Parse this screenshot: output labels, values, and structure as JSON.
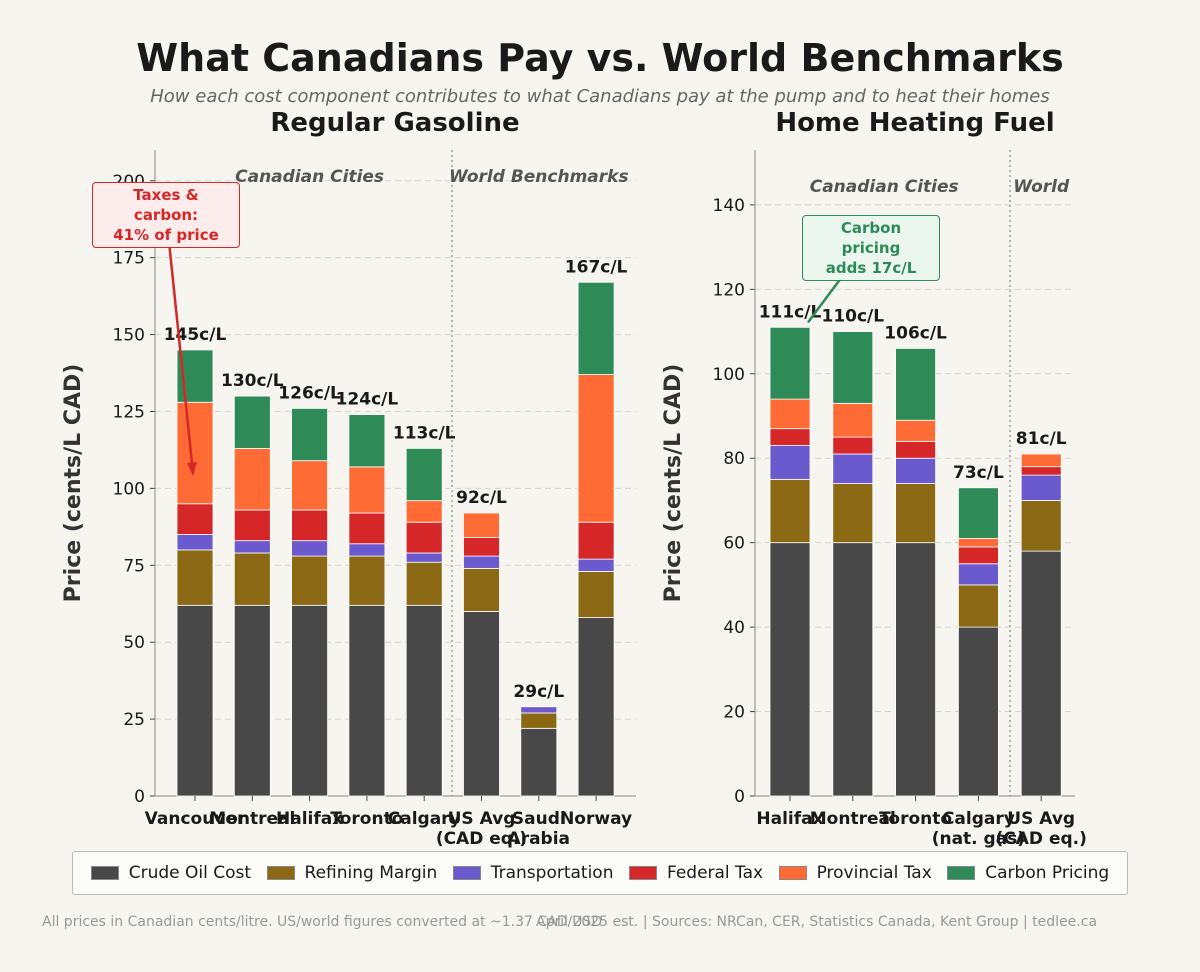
{
  "title": "What Canadians Pay vs. World Benchmarks",
  "subtitle": "How each cost component contributes to what Canadians pay at the pump and to heat their homes",
  "footer_left": "All prices in Canadian cents/litre. US/world figures converted at ~1.37 CAD/USD",
  "footer_right": "April 2025 est.  |  Sources: NRCan, CER, Statistics Canada, Kent Group  |  tedlee.ca",
  "colors": {
    "Crude Oil Cost": "#484848",
    "Refining Margin": "#8b6914",
    "Transportation": "#6a5acd",
    "Federal Tax": "#d62728",
    "Provincial Tax": "#ff6b35",
    "Carbon Pricing": "#2e8b57"
  },
  "legend": [
    "Crude Oil Cost",
    "Refining Margin",
    "Transportation",
    "Federal Tax",
    "Provincial Tax",
    "Carbon Pricing"
  ],
  "chart_data": [
    {
      "type": "bar",
      "stacked": true,
      "title": "Regular Gasoline",
      "ylabel": "Price (cents/L CAD)",
      "ylim": [
        0,
        210
      ],
      "yticks": [
        0,
        25,
        50,
        75,
        100,
        125,
        150,
        175,
        200
      ],
      "grid": true,
      "categories": [
        "Vancouver",
        "Montreal",
        "Halifax",
        "Toronto",
        "Calgary",
        "US Avg\n(CAD eq.)",
        "Saudi\nArabia",
        "Norway"
      ],
      "group_labels": [
        {
          "text": "Canadian Cities",
          "from": 0,
          "to": 4
        },
        {
          "text": "World Benchmarks",
          "from": 5,
          "to": 7
        }
      ],
      "totals_labels": [
        "145c/L",
        "130c/L",
        "126c/L",
        "124c/L",
        "113c/L",
        "92c/L",
        "29c/L",
        "167c/L"
      ],
      "series": [
        {
          "name": "Crude Oil Cost",
          "values": [
            62,
            62,
            62,
            62,
            62,
            60,
            22,
            58
          ]
        },
        {
          "name": "Refining Margin",
          "values": [
            18,
            17,
            16,
            16,
            14,
            14,
            5,
            15
          ]
        },
        {
          "name": "Transportation",
          "values": [
            5,
            4,
            5,
            4,
            3,
            4,
            2,
            4
          ]
        },
        {
          "name": "Federal Tax",
          "values": [
            10,
            10,
            10,
            10,
            10,
            6,
            0,
            12
          ]
        },
        {
          "name": "Provincial Tax",
          "values": [
            33,
            20,
            16,
            15,
            7,
            8,
            0,
            48
          ]
        },
        {
          "name": "Carbon Pricing",
          "values": [
            17,
            17,
            17,
            17,
            17,
            0,
            0,
            30
          ]
        }
      ],
      "annotation": {
        "text": "Taxes & carbon:\n41% of price",
        "x": 0,
        "y": 105
      }
    },
    {
      "type": "bar",
      "stacked": true,
      "title": "Home Heating Fuel",
      "ylabel": "Price (cents/L CAD)",
      "ylim": [
        0,
        153
      ],
      "yticks": [
        0,
        20,
        40,
        60,
        80,
        100,
        120,
        140
      ],
      "grid": true,
      "categories": [
        "Halifax",
        "Montreal",
        "Toronto",
        "Calgary\n(nat. gas)",
        "US Avg\n(CAD eq.)"
      ],
      "group_labels": [
        {
          "text": "Canadian Cities",
          "from": 0,
          "to": 3
        },
        {
          "text": "World",
          "from": 4,
          "to": 4
        }
      ],
      "totals_labels": [
        "111c/L",
        "110c/L",
        "106c/L",
        "73c/L",
        "81c/L"
      ],
      "series": [
        {
          "name": "Crude Oil Cost",
          "values": [
            60,
            60,
            60,
            40,
            58
          ]
        },
        {
          "name": "Refining Margin",
          "values": [
            15,
            14,
            14,
            10,
            12
          ]
        },
        {
          "name": "Transportation",
          "values": [
            8,
            7,
            6,
            5,
            6
          ]
        },
        {
          "name": "Federal Tax",
          "values": [
            4,
            4,
            4,
            4,
            2
          ]
        },
        {
          "name": "Provincial Tax",
          "values": [
            7,
            8,
            5,
            2,
            3
          ]
        },
        {
          "name": "Carbon Pricing",
          "values": [
            17,
            17,
            17,
            12,
            0
          ]
        }
      ],
      "annotation": {
        "text": "Carbon pricing\nadds 17c/L",
        "x": 0,
        "y": 111
      }
    }
  ]
}
